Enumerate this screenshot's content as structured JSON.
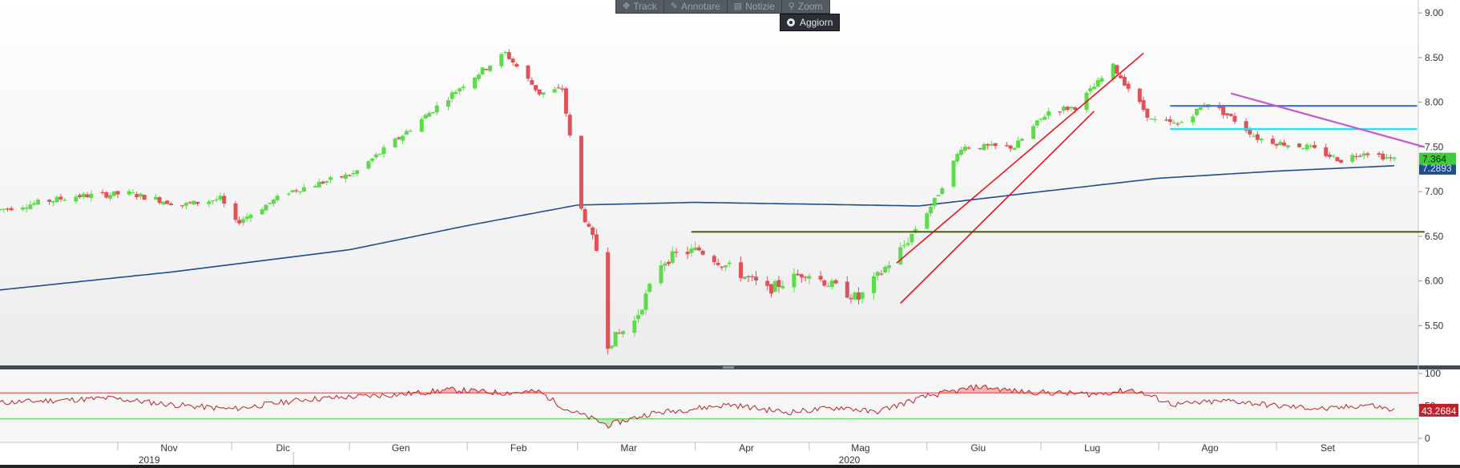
{
  "toolbar": {
    "buttons": [
      {
        "label": "Track",
        "icon": "crosshair-icon"
      },
      {
        "label": "Annotare",
        "icon": "pencil-icon"
      },
      {
        "label": "Notizie",
        "icon": "news-icon"
      },
      {
        "label": "Zoom",
        "icon": "magnifier-icon"
      }
    ],
    "update_label": "Aggiorn"
  },
  "colors": {
    "up": "#5ddc4a",
    "down": "#e0525a",
    "ma": "#1f4e8c",
    "channel": "#e8141e",
    "support": "#3b5a00",
    "resistance_blue": "#4a74d8",
    "resistance_cyan": "#22e4ee",
    "downtrend": "#c458c8",
    "rsi": "#b3262e",
    "rsi_upper": "#e03a3a",
    "rsi_lower": "#3ccc3c",
    "price_badge": "#3ccc3c",
    "ma_badge": "#1f4e8c",
    "rsi_badge": "#c0202a"
  },
  "chart_data": [
    {
      "type": "candlestick",
      "title": "",
      "x_axis": {
        "months": [
          "Nov",
          "Dic",
          "Gen",
          "Feb",
          "Mar",
          "Apr",
          "Mag",
          "Giu",
          "Lug",
          "Ago",
          "Set"
        ],
        "years": [
          "2019",
          "2020"
        ]
      },
      "y_axis": {
        "ticks": [
          "9.00",
          "8.50",
          "8.00",
          "7.50",
          "7.00",
          "6.50",
          "6.00",
          "5.50"
        ],
        "ylim": [
          5.1,
          9.1
        ]
      },
      "grid": false,
      "last_price": "7.364",
      "ma_value": "7.2893",
      "anchors": [
        [
          "2019-10-01",
          6.8
        ],
        [
          "2019-10-21",
          6.95
        ],
        [
          "2019-11-04",
          6.98
        ],
        [
          "2019-11-18",
          6.85
        ],
        [
          "2019-11-28",
          6.92
        ],
        [
          "2019-12-02",
          6.65
        ],
        [
          "2019-12-16",
          7.0
        ],
        [
          "2020-01-02",
          7.2
        ],
        [
          "2020-01-14",
          7.6
        ],
        [
          "2020-01-31",
          8.2
        ],
        [
          "2020-02-11",
          8.55
        ],
        [
          "2020-02-20",
          8.1
        ],
        [
          "2020-02-26",
          8.15
        ],
        [
          "2020-03-02",
          6.8
        ],
        [
          "2020-03-06",
          6.35
        ],
        [
          "2020-03-09",
          5.3
        ],
        [
          "2020-03-16",
          5.55
        ],
        [
          "2020-03-23",
          6.2
        ],
        [
          "2020-03-27",
          6.3
        ],
        [
          "2020-04-02",
          6.35
        ],
        [
          "2020-04-08",
          6.2
        ],
        [
          "2020-04-20",
          5.9
        ],
        [
          "2020-04-30",
          6.1
        ],
        [
          "2020-05-14",
          5.8
        ],
        [
          "2020-05-26",
          6.4
        ],
        [
          "2020-06-03",
          6.9
        ],
        [
          "2020-06-10",
          7.5
        ],
        [
          "2020-06-24",
          7.5
        ],
        [
          "2020-07-03",
          7.9
        ],
        [
          "2020-07-10",
          7.95
        ],
        [
          "2020-07-20",
          8.4
        ],
        [
          "2020-07-30",
          7.8
        ],
        [
          "2020-08-06",
          7.75
        ],
        [
          "2020-08-14",
          8.0
        ],
        [
          "2020-08-21",
          7.8
        ],
        [
          "2020-08-27",
          7.6
        ],
        [
          "2020-09-01",
          7.55
        ],
        [
          "2020-09-09",
          7.5
        ],
        [
          "2020-09-18",
          7.35
        ],
        [
          "2020-09-24",
          7.45
        ],
        [
          "2020-10-02",
          7.36
        ]
      ],
      "moving_average": [
        [
          "2019-10-01",
          5.9
        ],
        [
          "2019-11-15",
          6.1
        ],
        [
          "2020-01-01",
          6.35
        ],
        [
          "2020-02-01",
          6.62
        ],
        [
          "2020-03-01",
          6.85
        ],
        [
          "2020-04-01",
          6.88
        ],
        [
          "2020-05-01",
          6.86
        ],
        [
          "2020-05-30",
          6.84
        ],
        [
          "2020-07-01",
          7.0
        ],
        [
          "2020-08-01",
          7.15
        ],
        [
          "2020-09-01",
          7.23
        ],
        [
          "2020-10-02",
          7.29
        ]
      ],
      "drawn_lines": {
        "channel_upper": [
          [
            "2020-05-24",
            6.2
          ],
          [
            "2020-07-28",
            8.55
          ]
        ],
        "channel_lower": [
          [
            "2020-05-25",
            5.75
          ],
          [
            "2020-07-15",
            7.9
          ]
        ],
        "support": [
          [
            "2020-03-31",
            6.55
          ],
          [
            "2020-10-10",
            6.55
          ]
        ],
        "resistance_blue": [
          [
            "2020-08-04",
            7.96
          ],
          [
            "2020-10-08",
            7.96
          ]
        ],
        "resistance_cyan": [
          [
            "2020-08-04",
            7.7
          ],
          [
            "2020-10-08",
            7.7
          ]
        ],
        "downtrend": [
          [
            "2020-08-20",
            8.1
          ],
          [
            "2020-10-10",
            7.5
          ]
        ]
      }
    },
    {
      "type": "line",
      "title": "",
      "series_value_label": "43.2684",
      "y_axis": {
        "ticks": [
          "100",
          "50",
          "0"
        ],
        "ylim": [
          -5,
          105
        ]
      },
      "levels": [
        70,
        30
      ],
      "anchors": [
        [
          "2019-10-01",
          55
        ],
        [
          "2019-10-30",
          62
        ],
        [
          "2019-11-15",
          52
        ],
        [
          "2019-12-01",
          45
        ],
        [
          "2019-12-20",
          60
        ],
        [
          "2020-01-15",
          68
        ],
        [
          "2020-01-28",
          75
        ],
        [
          "2020-02-10",
          70
        ],
        [
          "2020-02-20",
          72
        ],
        [
          "2020-02-27",
          45
        ],
        [
          "2020-03-05",
          30
        ],
        [
          "2020-03-09",
          20
        ],
        [
          "2020-03-20",
          38
        ],
        [
          "2020-04-10",
          52
        ],
        [
          "2020-04-25",
          40
        ],
        [
          "2020-05-10",
          48
        ],
        [
          "2020-05-18",
          40
        ],
        [
          "2020-06-01",
          65
        ],
        [
          "2020-06-15",
          80
        ],
        [
          "2020-06-25",
          72
        ],
        [
          "2020-07-15",
          68
        ],
        [
          "2020-07-25",
          75
        ],
        [
          "2020-08-05",
          52
        ],
        [
          "2020-08-20",
          58
        ],
        [
          "2020-09-01",
          50
        ],
        [
          "2020-09-15",
          45
        ],
        [
          "2020-09-25",
          52
        ],
        [
          "2020-10-02",
          43
        ]
      ]
    }
  ]
}
